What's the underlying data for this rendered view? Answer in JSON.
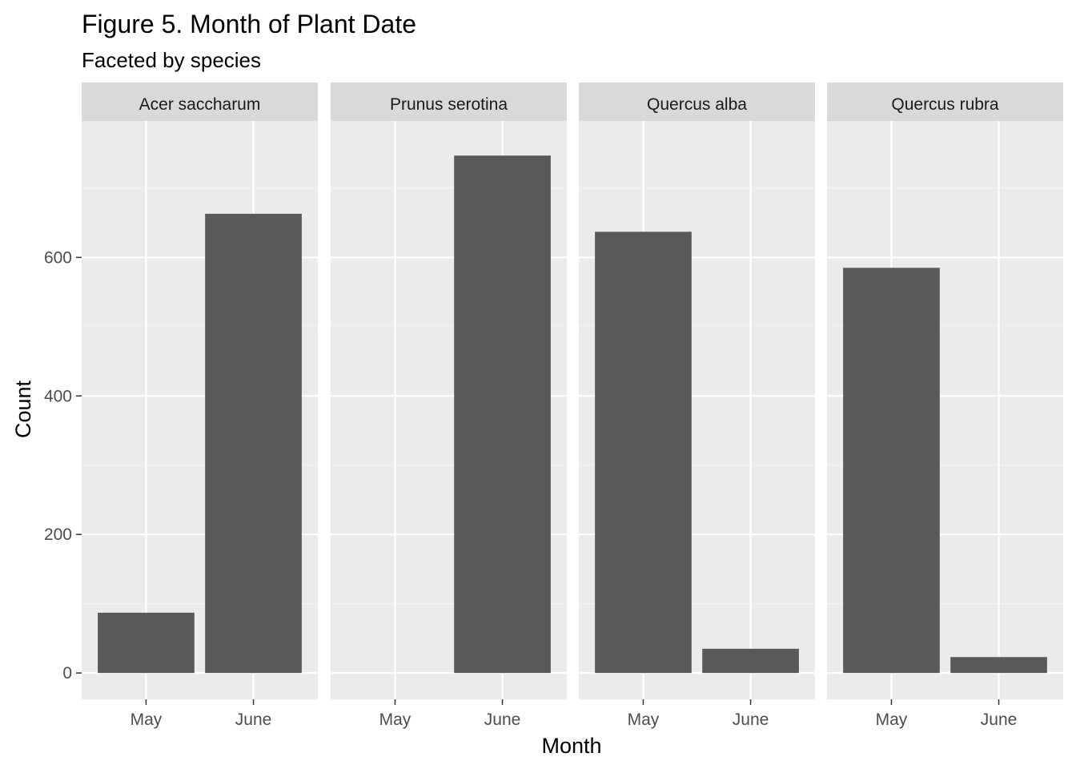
{
  "chart_data": {
    "type": "bar",
    "title": "Figure 5. Month of Plant Date",
    "subtitle": "Faceted by species",
    "xlabel": "Month",
    "ylabel": "Count",
    "categories": [
      "May",
      "June"
    ],
    "ylim": [
      -38,
      797
    ],
    "yticks": [
      0,
      200,
      400,
      600
    ],
    "grid": true,
    "facets": [
      {
        "name": "Acer saccharum",
        "values": [
          87,
          663
        ]
      },
      {
        "name": "Prunus serotina",
        "values": [
          0,
          747
        ]
      },
      {
        "name": "Quercus alba",
        "values": [
          637,
          35
        ]
      },
      {
        "name": "Quercus rubra",
        "values": [
          585,
          23
        ]
      }
    ],
    "colors": {
      "bar": "#595959",
      "panel": "#ebebeb",
      "strip": "#d9d9d9",
      "grid_major": "#ffffff",
      "grid_minor": "#f5f5f5",
      "tick": "#333333"
    }
  }
}
